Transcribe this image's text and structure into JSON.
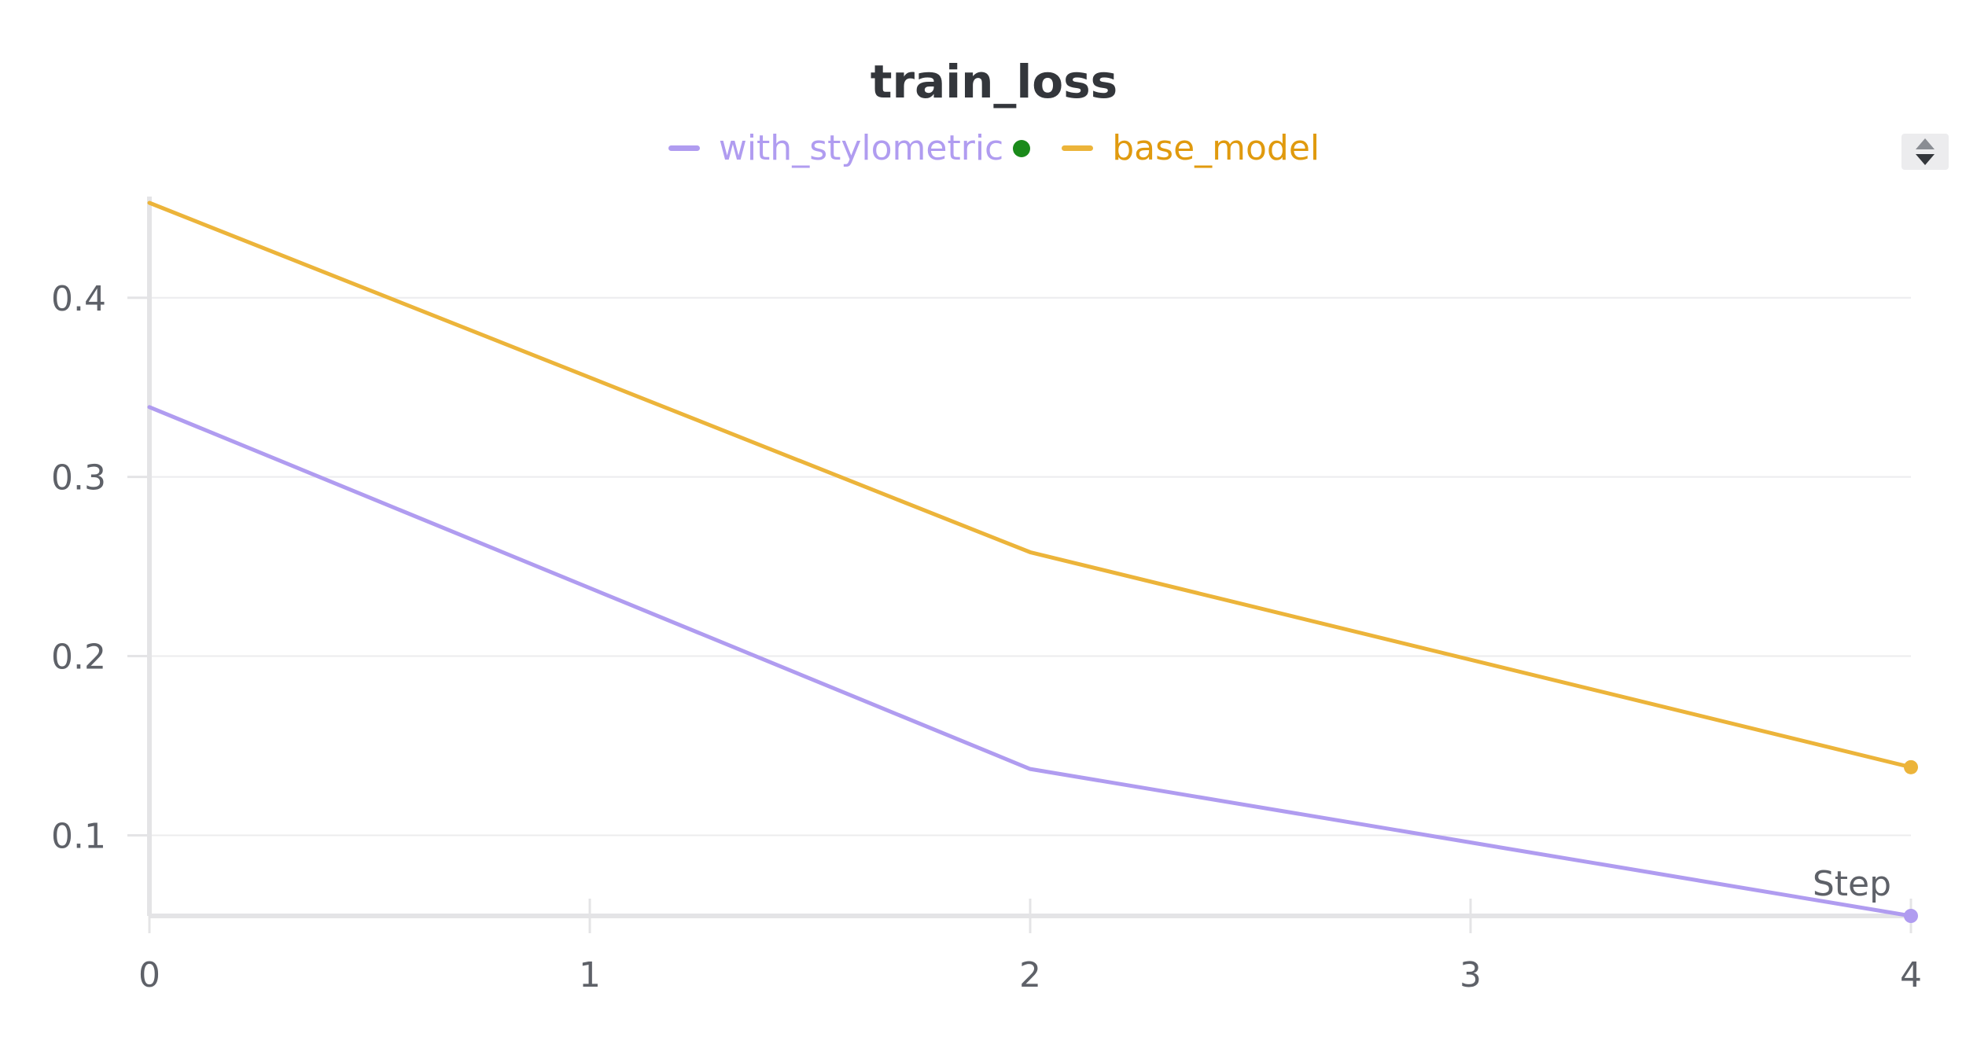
{
  "chart_data": {
    "type": "line",
    "title": "train_loss",
    "xlabel": "Step",
    "ylabel": "",
    "x": [
      0,
      1,
      2,
      3,
      4
    ],
    "xlim": [
      0,
      4
    ],
    "ylim": [
      0.055,
      0.453
    ],
    "xticks": [
      "0",
      "1",
      "2",
      "3",
      "4"
    ],
    "yticks": [
      {
        "value": 0.1,
        "label": "0.1"
      },
      {
        "value": 0.2,
        "label": "0.2"
      },
      {
        "value": 0.3,
        "label": "0.3"
      },
      {
        "value": 0.4,
        "label": "0.4"
      }
    ],
    "grid": true,
    "legend_position": "top-center",
    "series": [
      {
        "name": "with_stylometric",
        "color": "#b09cf0",
        "x": [
          0,
          2,
          4
        ],
        "values": [
          0.339,
          0.137,
          0.055
        ]
      },
      {
        "name": "base_model",
        "color": "#ecb43a",
        "x": [
          0,
          2,
          4
        ],
        "values": [
          0.453,
          0.258,
          0.138
        ]
      }
    ]
  },
  "legend": {
    "items": [
      {
        "label": "with_stylometric",
        "color": "#b09cf0",
        "text_color": "#b09cf0",
        "marker_color": "#1a8a1a"
      },
      {
        "label": "base_model",
        "color": "#ecb43a",
        "text_color": "#e09a0e"
      }
    ]
  },
  "colors": {
    "axis": "#e4e4e6",
    "grid": "#ececee",
    "tick_text": "#5e6168",
    "title": "#33363b"
  }
}
